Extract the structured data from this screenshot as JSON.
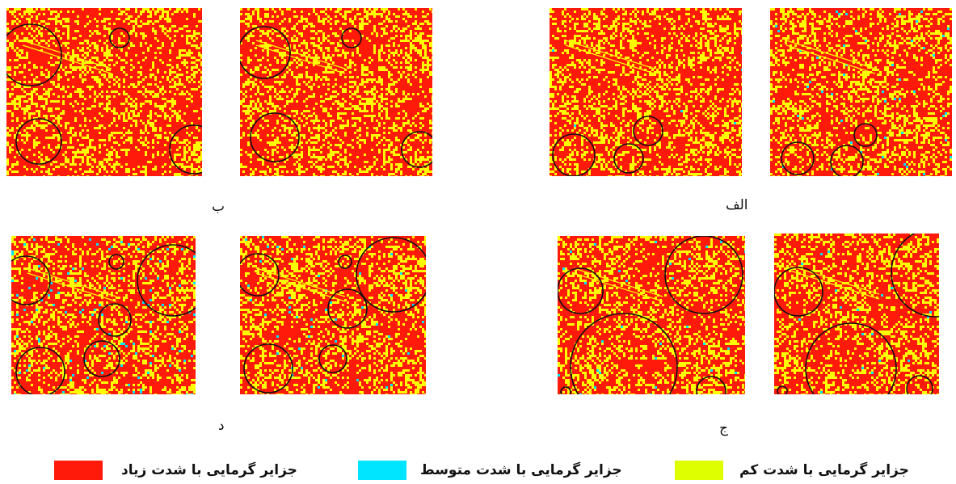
{
  "colors": {
    "high": "#ff1a0a",
    "medium": "#00e5ff",
    "low": "#ffff00"
  },
  "panels": [
    {
      "id": "alef",
      "label": "الف"
    },
    {
      "id": "be",
      "label": "ب"
    },
    {
      "id": "jim",
      "label": "ج"
    },
    {
      "id": "dal",
      "label": "د"
    }
  ],
  "legend": {
    "high": "جزایر گرمایی با شدت زیاد",
    "medium": "جزایر گرمایی با شدت متوسط",
    "low": "جزایر گرمایی با شدت کم"
  },
  "icons": [
    "heat-island-map"
  ]
}
